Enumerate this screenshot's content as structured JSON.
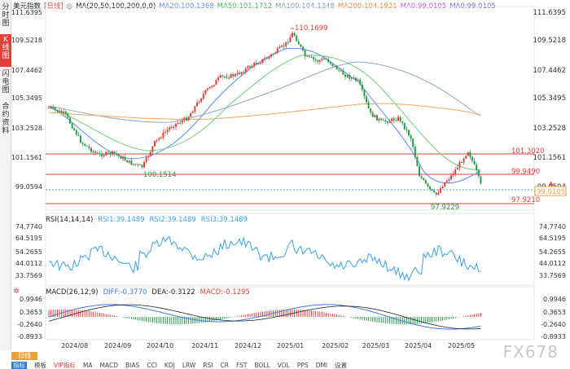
{
  "sidebar": {
    "tabs": [
      {
        "label": "分时图",
        "active": false
      },
      {
        "label": "K线图",
        "active": true
      },
      {
        "label": "闪电图",
        "active": false
      },
      {
        "label": "合约资料",
        "active": false
      }
    ]
  },
  "header": {
    "instrument": "美元指数",
    "period": "[日线]",
    "ma_label": "MA(20,50,100,200,0,0)",
    "ma20": "MA20:100.1368",
    "ma50": "MA50:101.1712",
    "ma100": "MA100:104.1348",
    "ma200": "MA200:104.1921",
    "ma0a": "MA0:99.0105",
    "ma0b": "MA0:99.0105"
  },
  "colors": {
    "up": "#e0403a",
    "down": "#2d9a4a",
    "ma20": "#5a8df0",
    "ma50": "#6fcf7a",
    "ma100": "#8aa6c8",
    "ma200": "#f2a45a",
    "rsi": "#3aa0e8",
    "hline": "#e0403a"
  },
  "price_axis": {
    "ticks": [
      "111.6395",
      "109.5218",
      "107.4462",
      "105.3495",
      "103.2528",
      "101.1561",
      "99.0594"
    ],
    "current": "99.0105"
  },
  "price_labels": {
    "high": "110.1699",
    "low": "97.9229",
    "mid_low": "100.1514",
    "h1": "101.3020",
    "h2": "99.9490",
    "h3": "97.9210"
  },
  "rsi": {
    "header_label": "RSI(14,14,14)",
    "rsi1": "RSI1:39.1489",
    "rsi2": "RSI2:39.1489",
    "rsi3": "RSI3:39.1489",
    "ticks": [
      "74.7740",
      "64.5195",
      "54.2655",
      "44.0112",
      "33.7569"
    ]
  },
  "macd": {
    "header_label": "MACD(26,12,9)",
    "diff": "DIFF:-0.3770",
    "dea": "DEA:-0.3122",
    "macd": "MACD:-0.1295",
    "ticks": [
      "0.9946",
      "0.3653",
      "-0.2640",
      "-0.8933"
    ]
  },
  "dates": [
    "2024/08",
    "2024/09",
    "2024/10",
    "2024/11",
    "2024/12",
    "2025/01",
    "2025/02",
    "2025/03",
    "2025/04",
    "2025/05"
  ],
  "bottom": {
    "period_button": "日线",
    "indicator_tabs": [
      "指标",
      "模板",
      "VIP指标",
      "MA",
      "MACD",
      "BIAS",
      "CCI",
      "KDJ",
      "LRW",
      "RSI",
      "CR",
      "FST",
      "BOLL",
      "VOL",
      "PPS",
      "DMI",
      "设置"
    ]
  },
  "watermark": "FX678"
}
